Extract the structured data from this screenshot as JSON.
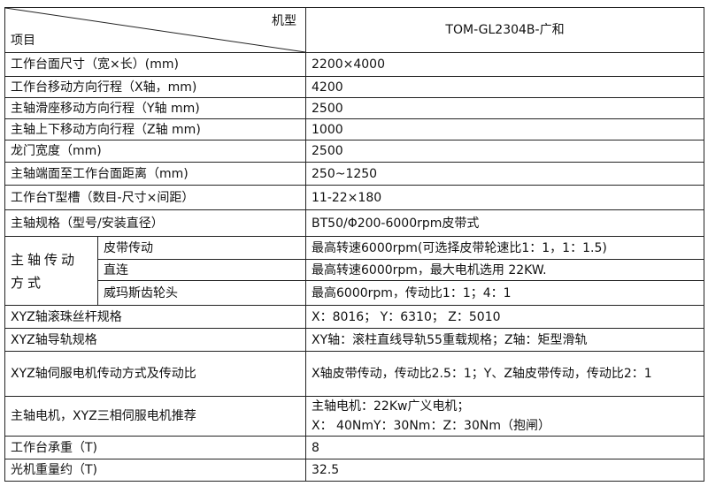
{
  "header": {
    "model_label": "机型",
    "item_label": "项目",
    "model_name": "TOM-GL2304B-广和"
  },
  "rows": [
    {
      "label": "工作台面尺寸（宽×长）(mm)",
      "value": "2200×4000"
    },
    {
      "label": "工作台移动方向行程（X轴，mm)",
      "value": "4200"
    },
    {
      "label": "主轴滑座移动方向行程（Y轴 mm)",
      "value": "2500"
    },
    {
      "label": "主轴上下移动方向行程（Z轴 mm)",
      "value": "1000"
    },
    {
      "label": "龙门宽度（mm)",
      "value": "2500"
    },
    {
      "label": "主轴端面至工作台面距离（mm)",
      "value": "250~1250"
    },
    {
      "label": "工作台T型槽（数目-尺寸×间距）",
      "value": "11-22×180"
    },
    {
      "label": "主轴规格（型号/安装直径）",
      "value": "BT50/Φ200-6000rpm皮带式"
    }
  ],
  "transmission": {
    "label": "主轴传动方式",
    "items": [
      {
        "label": "皮带传动",
        "value": "最高转速6000rpm(可选择皮带轮速比1：1，1：1.5)"
      },
      {
        "label": "直连",
        "value": "最高转速6000rpm，最大电机选用 22KW."
      },
      {
        "label": "威玛斯齿轮头",
        "value": "最高6000rpm，传动比1：1；4：1"
      }
    ]
  },
  "rows2": [
    {
      "label": "XYZ轴滚珠丝杆规格",
      "value": "X：8016；  Y：6310；  Z：5010"
    },
    {
      "label": "XYZ轴导轨规格",
      "value": "XY轴：滚柱直线导轨55重载规格；Z轴：矩型滑轨"
    },
    {
      "label": "XYZ轴伺服电机传动方式及传动比",
      "value": "X轴皮带传动，传动比2.5：1；Y、Z轴皮带传动，传动比2：1"
    },
    {
      "label": "主轴电机，XYZ三相伺服电机推荐",
      "value_line1": "主轴电机：22Kw广义电机；",
      "value_line2": "X： 40NmY：30Nm：Z：30Nm（抱闸）"
    },
    {
      "label": "工作台承重（T)",
      "value": "8"
    },
    {
      "label": "光机重量约（T)",
      "value": "32.5"
    }
  ]
}
